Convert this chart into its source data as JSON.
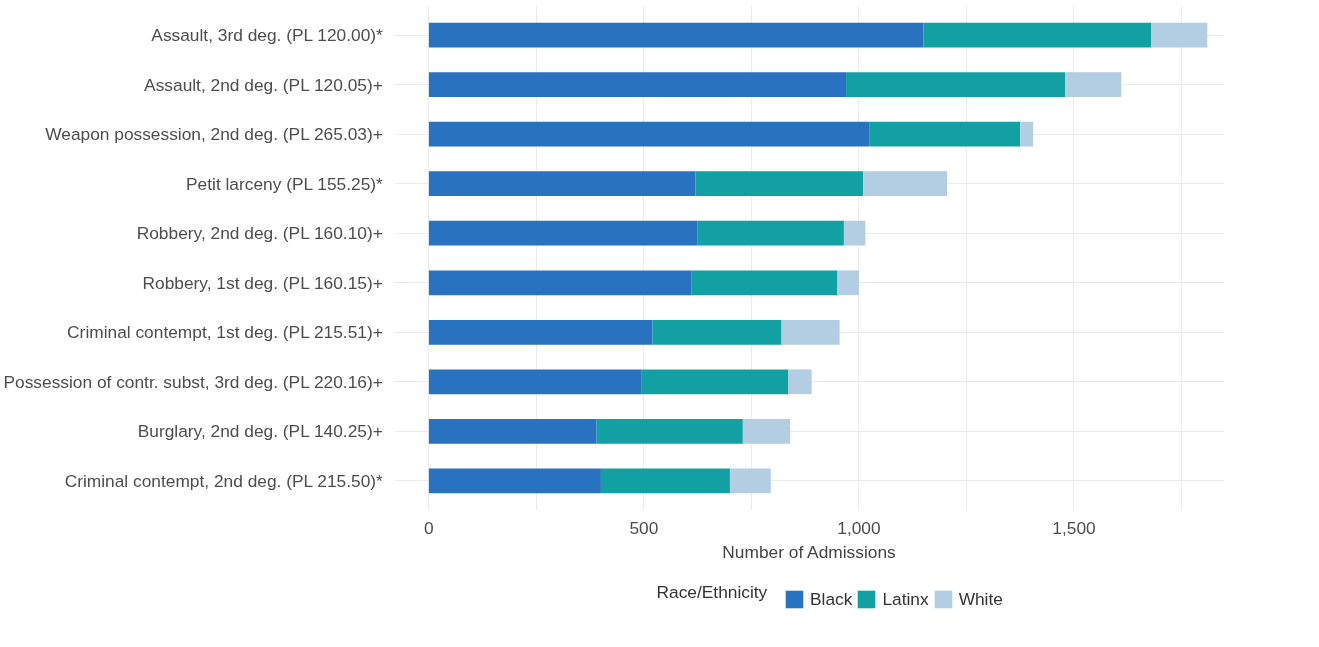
{
  "chart_data": {
    "type": "bar",
    "orientation": "horizontal",
    "stacked": true,
    "xlabel": "Number of Admissions",
    "legend_title": "Race/Ethnicity",
    "legend": "bottom",
    "grid": true,
    "categories": [
      "Assault, 3rd deg. (PL 120.00)*",
      "Assault, 2nd deg. (PL 120.05)+",
      "Weapon possession, 2nd deg. (PL 265.03)+",
      "Petit larceny (PL 155.25)*",
      "Robbery, 2nd deg. (PL 160.10)+",
      "Robbery, 1st deg. (PL 160.15)+",
      "Criminal contempt, 1st deg. (PL 215.51)+",
      "Possession of contr. subst, 3rd deg. (PL 220.16)+",
      "Burglary, 2nd deg. (PL 140.25)+",
      "Criminal contempt, 2nd deg. (PL 215.50)*"
    ],
    "series": [
      {
        "name": "Black",
        "color": "#2872c0",
        "values": [
          1150,
          970,
          1025,
          620,
          625,
          610,
          520,
          495,
          390,
          400
        ]
      },
      {
        "name": "Latinx",
        "color": "#12a0a3",
        "values": [
          530,
          510,
          350,
          390,
          340,
          340,
          300,
          340,
          340,
          300
        ]
      },
      {
        "name": "White",
        "color": "#b3cde3",
        "values": [
          130,
          130,
          30,
          195,
          50,
          50,
          135,
          55,
          110,
          95
        ]
      }
    ],
    "xlim": [
      -80,
      1850
    ],
    "xticks": [
      0,
      {
        "value": 250,
        "label": null
      },
      {
        "value": 500,
        "label": "500"
      },
      {
        "value": 750,
        "label": null
      },
      {
        "value": 1000,
        "label": "1,000"
      },
      {
        "value": 1250,
        "label": null
      },
      {
        "value": 1500,
        "label": "1,500"
      },
      {
        "value": 1750,
        "label": null
      }
    ]
  }
}
